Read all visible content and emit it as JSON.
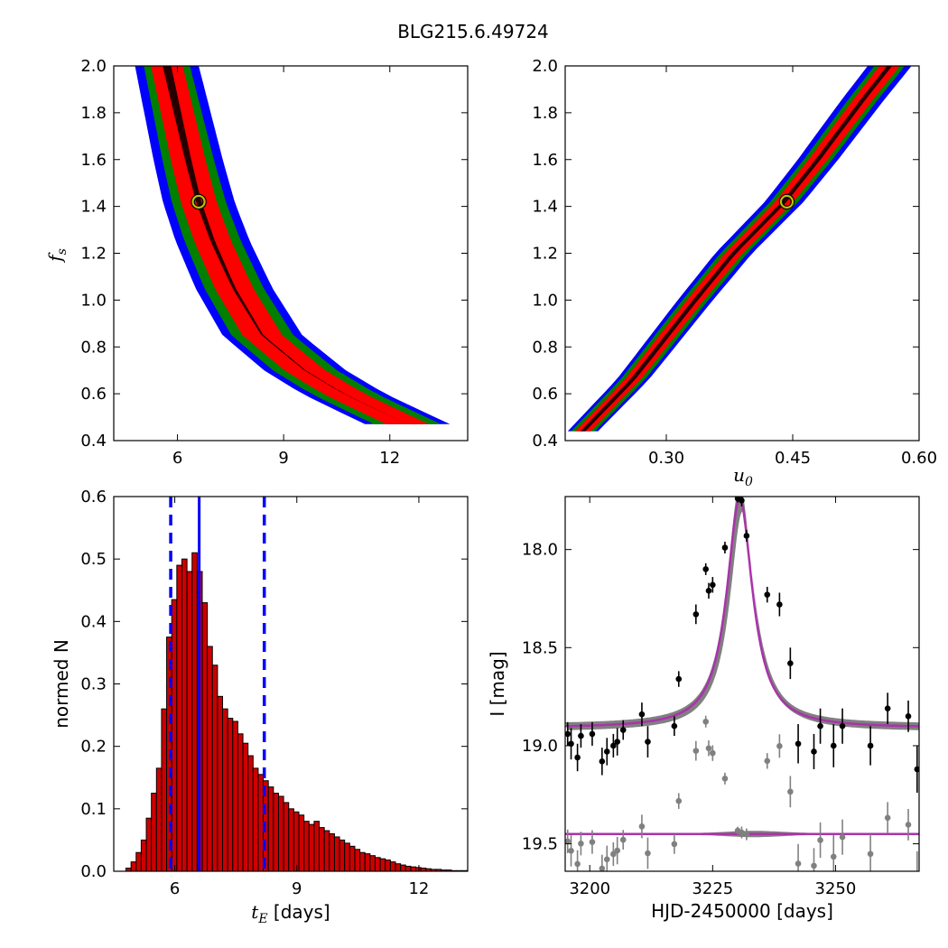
{
  "figure_title": "BLG215.6.49724",
  "colors": {
    "sigma3": "#0000ff",
    "sigma2": "#007f00",
    "sigma1": "#ff0000",
    "core": "#000000",
    "best_fit_marker": "#bfbf00",
    "hist_bar": "#cc0000",
    "hist_median": "#0000ff",
    "model_line": "#aa33aa",
    "model_band": "#808080",
    "residual_points": "#808080",
    "data_points": "#000000"
  },
  "chart_data": [
    {
      "id": "tE_fs",
      "type": "heatmap",
      "title": "",
      "xlabel": "",
      "ylabel": "f",
      "ylabel_sub": "s",
      "xlim": [
        4.2,
        14.2
      ],
      "ylim": [
        0.4,
        2.0
      ],
      "xticks": [
        6,
        9,
        12
      ],
      "xtick_labels": [
        "6",
        "9",
        "12"
      ],
      "yticks": [
        0.4,
        0.6,
        0.8,
        1.0,
        1.2,
        1.4,
        1.6,
        1.8,
        2.0
      ],
      "ytick_labels": [
        "0.4",
        "0.6",
        "0.8",
        "1.0",
        "1.2",
        "1.4",
        "1.6",
        "1.8",
        "2.0"
      ],
      "ridge": [
        [
          5.7,
          2.0
        ],
        [
          6.0,
          1.8
        ],
        [
          6.3,
          1.6
        ],
        [
          6.6,
          1.42
        ],
        [
          7.0,
          1.25
        ],
        [
          7.6,
          1.05
        ],
        [
          8.4,
          0.85
        ],
        [
          9.6,
          0.7
        ],
        [
          10.7,
          0.6
        ],
        [
          11.8,
          0.52
        ],
        [
          12.5,
          0.47
        ]
      ],
      "region_half_widths": {
        "sigma3": [
          0.9,
          1.2
        ],
        "sigma2": [
          0.65,
          0.95
        ],
        "sigma1": [
          0.45,
          0.6
        ],
        "core": [
          0.12,
          0.0
        ]
      },
      "best_fit": [
        6.6,
        1.42
      ]
    },
    {
      "id": "u0_fs",
      "type": "heatmap",
      "title": "",
      "xlabel": "u",
      "xlabel_sub": "0",
      "ylabel": "",
      "xlim": [
        0.18,
        0.6
      ],
      "ylim": [
        0.4,
        2.0
      ],
      "xticks": [
        0.3,
        0.45,
        0.6
      ],
      "xtick_labels": [
        "0.30",
        "0.45",
        "0.60"
      ],
      "yticks": [
        0.4,
        0.6,
        0.8,
        1.0,
        1.2,
        1.4,
        1.6,
        1.8,
        2.0
      ],
      "ytick_labels": [
        "0.4",
        "0.6",
        "0.8",
        "1.0",
        "1.2",
        "1.4",
        "1.6",
        "1.8",
        "2.0"
      ],
      "ridge": [
        [
          0.201,
          0.44
        ],
        [
          0.26,
          0.66
        ],
        [
          0.33,
          0.98
        ],
        [
          0.38,
          1.2
        ],
        [
          0.44,
          1.42
        ],
        [
          0.48,
          1.6
        ],
        [
          0.53,
          1.84
        ],
        [
          0.565,
          2.0
        ]
      ],
      "region_half_widths": {
        "sigma3": [
          0.026,
          0.018
        ],
        "sigma2": [
          0.018,
          0.014
        ],
        "sigma1": [
          0.012,
          0.009
        ],
        "core": [
          0.003,
          0.003
        ]
      },
      "best_fit": [
        0.443,
        1.42
      ]
    },
    {
      "id": "tE_hist",
      "type": "bar",
      "title": "",
      "xlabel": "t",
      "xlabel_sub": "E",
      "xlabel_unit": " [days]",
      "ylabel": "normed N",
      "xlim": [
        4.5,
        13.2
      ],
      "ylim": [
        0.0,
        0.6
      ],
      "xticks": [
        6,
        9,
        12
      ],
      "xtick_labels": [
        "6",
        "9",
        "12"
      ],
      "yticks": [
        0.0,
        0.1,
        0.2,
        0.3,
        0.4,
        0.5,
        0.6
      ],
      "ytick_labels": [
        "0.0",
        "0.1",
        "0.2",
        "0.3",
        "0.4",
        "0.5",
        "0.6"
      ],
      "bin_start": 4.8,
      "bin_width": 0.125,
      "values": [
        0.005,
        0.015,
        0.03,
        0.05,
        0.085,
        0.125,
        0.165,
        0.26,
        0.375,
        0.435,
        0.49,
        0.5,
        0.48,
        0.51,
        0.48,
        0.43,
        0.36,
        0.33,
        0.28,
        0.26,
        0.245,
        0.24,
        0.22,
        0.205,
        0.185,
        0.165,
        0.155,
        0.145,
        0.135,
        0.125,
        0.12,
        0.11,
        0.1,
        0.095,
        0.09,
        0.08,
        0.075,
        0.08,
        0.07,
        0.065,
        0.06,
        0.055,
        0.05,
        0.045,
        0.04,
        0.035,
        0.03,
        0.028,
        0.025,
        0.022,
        0.02,
        0.018,
        0.015,
        0.012,
        0.01,
        0.008,
        0.007,
        0.006,
        0.005,
        0.004,
        0.003,
        0.003,
        0.002,
        0.002,
        0.001,
        0.001,
        0.001,
        0.001
      ],
      "median": 6.6,
      "interval": [
        5.9,
        8.2
      ]
    },
    {
      "id": "lightcurve",
      "type": "scatter",
      "title": "",
      "xlabel": "HJD-2450000 [days]",
      "ylabel": "I [mag]",
      "xlim": [
        3195,
        3267
      ],
      "ylim_inverted": [
        19.64,
        17.73
      ],
      "xticks": [
        3200,
        3225,
        3250
      ],
      "xtick_labels": [
        "3200",
        "3225",
        "3250"
      ],
      "yticks": [
        18.0,
        18.5,
        19.0,
        19.5
      ],
      "ytick_labels": [
        "18.0",
        "18.5",
        "19.0",
        "19.5"
      ],
      "model": {
        "t0": 3230.5,
        "baseline": 18.91,
        "peak": 17.74,
        "width": 3.2
      },
      "residual_baseline": 19.45,
      "data_points": [
        [
          3195.5,
          18.94,
          0.06
        ],
        [
          3196.2,
          18.99,
          0.08
        ],
        [
          3197.5,
          19.06,
          0.07
        ],
        [
          3198.2,
          18.95,
          0.06
        ],
        [
          3200.5,
          18.94,
          0.06
        ],
        [
          3202.5,
          19.08,
          0.07
        ],
        [
          3203.5,
          19.03,
          0.07
        ],
        [
          3204.8,
          19.0,
          0.06
        ],
        [
          3205.6,
          18.98,
          0.07
        ],
        [
          3206.8,
          18.92,
          0.05
        ],
        [
          3210.6,
          18.84,
          0.06
        ],
        [
          3211.8,
          18.98,
          0.08
        ],
        [
          3217.2,
          18.9,
          0.05
        ],
        [
          3218.1,
          18.66,
          0.04
        ],
        [
          3221.6,
          18.33,
          0.05
        ],
        [
          3223.6,
          18.1,
          0.03
        ],
        [
          3224.2,
          18.21,
          0.04
        ],
        [
          3225.0,
          18.18,
          0.04
        ],
        [
          3227.5,
          17.99,
          0.03
        ],
        [
          3230.1,
          17.74,
          0.02
        ],
        [
          3230.9,
          17.75,
          0.03
        ],
        [
          3231.9,
          17.93,
          0.03
        ],
        [
          3236.1,
          18.23,
          0.04
        ],
        [
          3238.6,
          18.28,
          0.06
        ],
        [
          3240.8,
          18.58,
          0.08
        ],
        [
          3242.4,
          18.99,
          0.1
        ],
        [
          3245.6,
          19.03,
          0.09
        ],
        [
          3246.9,
          18.9,
          0.09
        ],
        [
          3249.6,
          19.0,
          0.11
        ],
        [
          3251.4,
          18.9,
          0.09
        ],
        [
          3257.1,
          19.0,
          0.1
        ],
        [
          3260.6,
          18.81,
          0.08
        ],
        [
          3264.8,
          18.85,
          0.08
        ],
        [
          3266.6,
          19.12,
          0.12
        ]
      ]
    }
  ]
}
